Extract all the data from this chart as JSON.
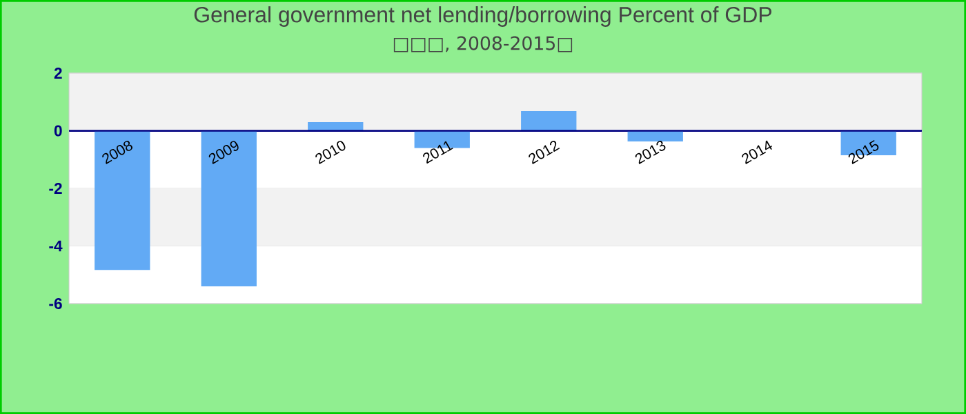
{
  "chart_data": {
    "type": "bar",
    "title": "General government net lending/borrowing  Percent of GDP",
    "subtitle": "□□□, 2008-2015□",
    "categories": [
      "2008",
      "2009",
      "2010",
      "2011",
      "2012",
      "2013",
      "2014",
      "2015"
    ],
    "values": [
      -4.83,
      -5.4,
      0.3,
      -0.6,
      0.68,
      -0.37,
      null,
      -0.85
    ],
    "color": "#62aaf5",
    "ylim": [
      -6,
      2
    ],
    "yticks": [
      -6,
      -4,
      -2,
      0,
      2
    ],
    "grid": "y"
  }
}
